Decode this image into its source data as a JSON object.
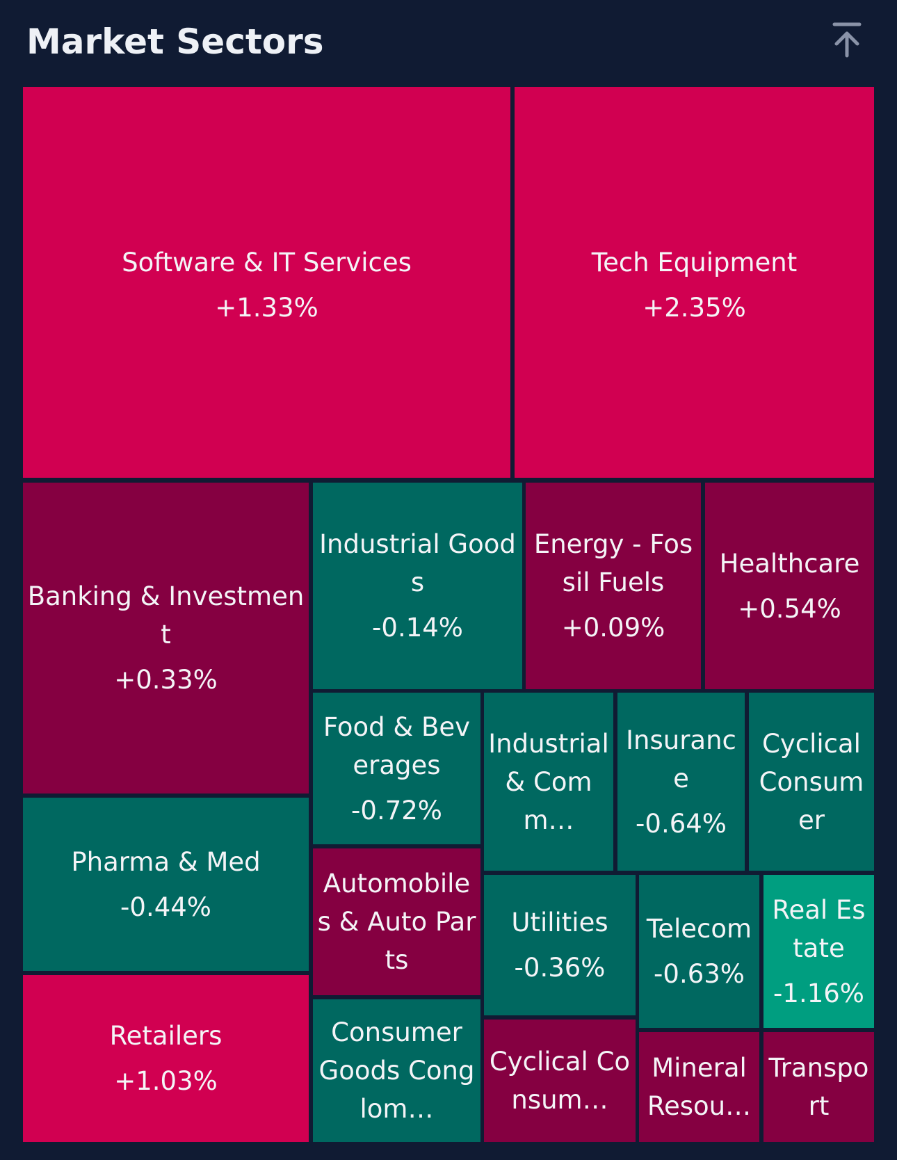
{
  "header": {
    "title": "Market Sectors",
    "top_icon": "arrow-to-top-icon"
  },
  "colors": {
    "background": "#101b33",
    "strong_gain": "#d10051",
    "gain": "#850041",
    "loss": "#006860",
    "strong_loss": "#009e80"
  },
  "chart_data": {
    "type": "treemap",
    "title": "Market Sectors",
    "sectors": [
      {
        "name": "Software & IT Services",
        "change": "+1.33%",
        "change_value": 1.33
      },
      {
        "name": "Tech Equipment",
        "change": "+2.35%",
        "change_value": 2.35
      },
      {
        "name": "Banking & Investment",
        "change": "+0.33%",
        "change_value": 0.33
      },
      {
        "name": "Industrial Goods",
        "change": "-0.14%",
        "change_value": -0.14
      },
      {
        "name": "Energy - Fossil Fuels",
        "change": "+0.09%",
        "change_value": 0.09
      },
      {
        "name": "Healthcare",
        "change": "+0.54%",
        "change_value": 0.54
      },
      {
        "name": "Food & Beverages",
        "change": "-0.72%",
        "change_value": -0.72
      },
      {
        "name": "Industrial & Comm…",
        "change": "",
        "change_value": null
      },
      {
        "name": "Insurance",
        "change": "-0.64%",
        "change_value": -0.64
      },
      {
        "name": "Cyclical Consumer",
        "change": "",
        "change_value": null
      },
      {
        "name": "Pharma & Med",
        "change": "-0.44%",
        "change_value": -0.44
      },
      {
        "name": "Automobiles & Auto Parts",
        "change": "",
        "change_value": null
      },
      {
        "name": "Utilities",
        "change": "-0.36%",
        "change_value": -0.36
      },
      {
        "name": "Telecom",
        "change": "-0.63%",
        "change_value": -0.63
      },
      {
        "name": "Real Estate",
        "change": "-1.16%",
        "change_value": -1.16
      },
      {
        "name": "Retailers",
        "change": "+1.03%",
        "change_value": 1.03
      },
      {
        "name": "Consumer Goods Conglom…",
        "change": "",
        "change_value": null
      },
      {
        "name": "Cyclical Consum…",
        "change": "",
        "change_value": null
      },
      {
        "name": "Mineral Resou…",
        "change": "",
        "change_value": null
      },
      {
        "name": "Transport",
        "change": "",
        "change_value": null
      }
    ]
  }
}
